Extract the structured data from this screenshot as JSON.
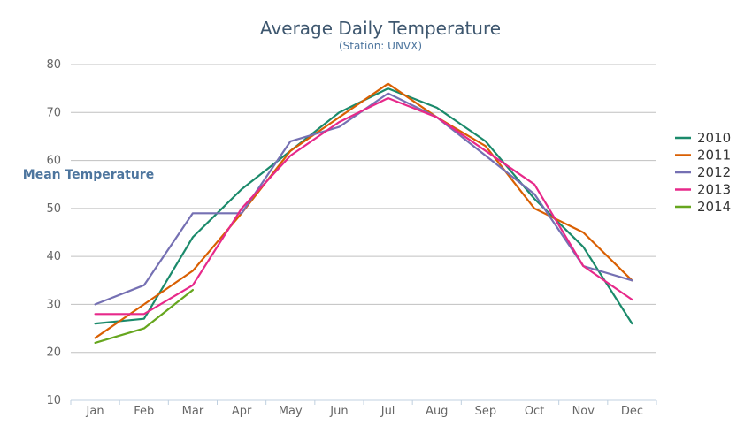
{
  "chart_data": {
    "type": "line",
    "title": "Average Daily Temperature",
    "subtitle": "(Station: UNVX)",
    "xlabel": "",
    "ylabel": "Mean Temperature",
    "ylim": [
      10,
      80
    ],
    "yticks": [
      10,
      20,
      30,
      40,
      50,
      60,
      70,
      80
    ],
    "grid": true,
    "legend_position": "right",
    "categories": [
      "Jan",
      "Feb",
      "Mar",
      "Apr",
      "May",
      "Jun",
      "Jul",
      "Aug",
      "Sep",
      "Oct",
      "Nov",
      "Dec"
    ],
    "series": [
      {
        "name": "2010",
        "color": "#1b8a6b",
        "values": [
          26,
          27,
          44,
          54,
          62,
          70,
          75,
          71,
          64,
          52,
          42,
          26
        ]
      },
      {
        "name": "2011",
        "color": "#d95f02",
        "values": [
          23,
          30,
          37,
          49,
          62,
          69,
          76,
          69,
          63,
          50,
          45,
          35
        ]
      },
      {
        "name": "2012",
        "color": "#7570b3",
        "values": [
          30,
          34,
          49,
          49,
          64,
          67,
          74,
          69,
          61,
          53,
          38,
          35
        ]
      },
      {
        "name": "2013",
        "color": "#e7298a",
        "values": [
          28,
          28,
          34,
          50,
          61,
          68,
          73,
          69,
          62,
          55,
          38,
          31
        ]
      },
      {
        "name": "2014",
        "color": "#66a61e",
        "values": [
          22,
          25,
          33,
          null,
          null,
          null,
          null,
          null,
          null,
          null,
          null,
          null
        ]
      }
    ]
  }
}
